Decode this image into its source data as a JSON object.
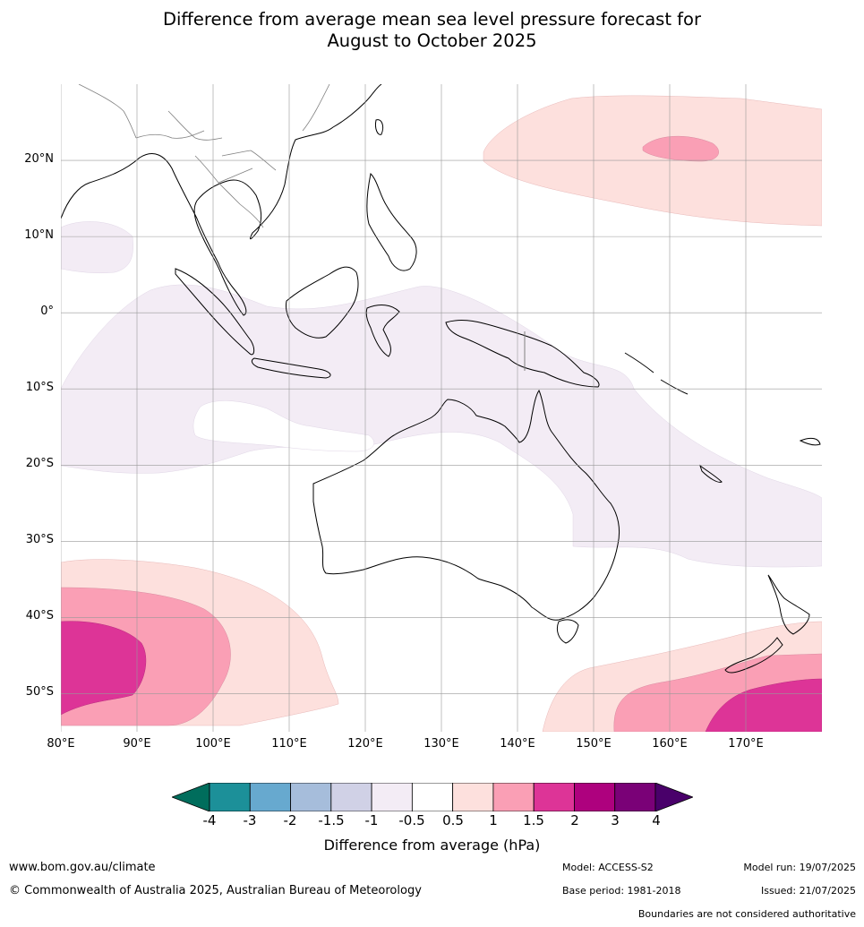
{
  "title": {
    "line1": "Difference from average mean sea level pressure forecast for",
    "line2": "August to October 2025"
  },
  "map": {
    "lat_labels": [
      "20°N",
      "10°N",
      "0°",
      "10°S",
      "20°S",
      "30°S",
      "40°S",
      "50°S"
    ],
    "lon_labels": [
      "80°E",
      "90°E",
      "100°E",
      "110°E",
      "120°E",
      "130°E",
      "140°E",
      "150°E",
      "160°E",
      "170°E"
    ],
    "extent": {
      "lon_min": 80,
      "lon_max": 180,
      "lat_min": -55,
      "lat_max": 30
    },
    "colors": {
      "land_outline": "#000000",
      "border": "#808080",
      "grid": "#999999",
      "neg_0_5_to_1": "#f3ecf5",
      "pos_0_5_to_1": "#fde0dd",
      "pos_1_to_1_5": "#fa9fb5",
      "pos_1_5_to_2": "#dd3497"
    }
  },
  "colorbar": {
    "ticks": [
      "-4",
      "-3",
      "-2",
      "-1.5",
      "-1",
      "-0.5",
      "0.5",
      "1",
      "1.5",
      "2",
      "3",
      "4"
    ],
    "colors": [
      "#006d5c",
      "#1c9099",
      "#67a9cf",
      "#a6bddb",
      "#d0d1e6",
      "#f3ecf5",
      "#ffffff",
      "#fde0dd",
      "#fa9fb5",
      "#dd3497",
      "#ae017e",
      "#7a0177",
      "#49006a"
    ],
    "label": "Difference from average (hPa)"
  },
  "footer": {
    "website": "www.bom.gov.au/climate",
    "copyright": "© Commonwealth of Australia 2025, Australian Bureau of Meteorology",
    "model": "Model: ACCESS-S2",
    "base_period": "Base period: 1981-2018",
    "model_run": "Model run: 19/07/2025",
    "issued": "Issued: 21/07/2025",
    "disclaimer": "Boundaries are not considered authoritative"
  }
}
